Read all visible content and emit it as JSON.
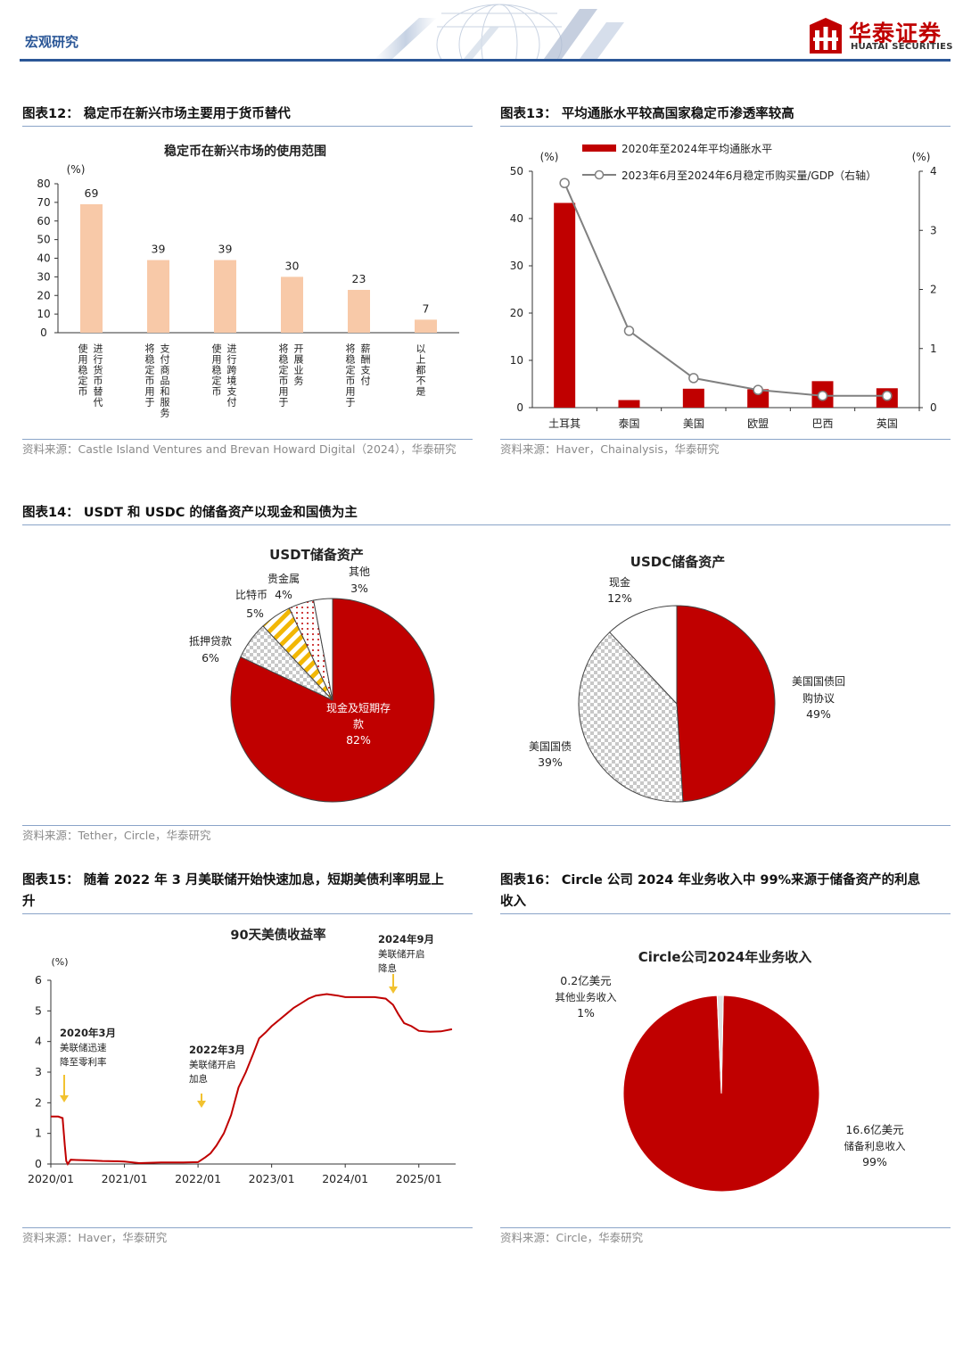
{
  "header": {
    "section": "宏观研究",
    "brand_cn": "华泰证券",
    "brand_en": "HUATAI SECURITIES"
  },
  "figures": {
    "fig12": {
      "title": "图表12：  稳定币在新兴市场主要用于货币替代",
      "source": "资料来源：Castle Island Ventures and Brevan Howard Digital（2024），华泰研究"
    },
    "fig13": {
      "title": "图表13：  平均通胀水平较高国家稳定币渗透率较高",
      "source": "资料来源：Haver，Chainalysis，华泰研究"
    },
    "fig14": {
      "title": "图表14：  USDT 和 USDC 的储备资产以现金和国债为主",
      "source": "资料来源：Tether，Circle，华泰研究"
    },
    "fig15": {
      "title_line1": "图表15：  随着 2022 年 3 月美联储开始快速加息，短期美债利率明显上",
      "title_line2": "升",
      "source": "资料来源：Haver，华泰研究"
    },
    "fig16": {
      "title_line1": "图表16：  Circle 公司 2024 年业务收入中 99%来源于储备资产的利息",
      "title_line2": "收入",
      "source": "资料来源：Circle，华泰研究"
    }
  },
  "chart_data": [
    {
      "id": "fig12",
      "type": "bar",
      "title": "稳定币在新兴市场的使用范围",
      "unit": "(%)",
      "ylim": [
        0,
        80
      ],
      "yticks": [
        0,
        10,
        20,
        30,
        40,
        50,
        60,
        70,
        80
      ],
      "categories": [
        [
          "使用稳定币",
          "进行货币替代"
        ],
        [
          "将稳定币用于",
          "支付商品和服务"
        ],
        [
          "使用稳定币",
          "进行跨境支付"
        ],
        [
          "将稳定币用于",
          "开展业务"
        ],
        [
          "将稳定币用于",
          "薪酬支付"
        ],
        [
          "以上都不是"
        ]
      ],
      "values": [
        69,
        39,
        39,
        30,
        23,
        7
      ],
      "color": "#f8c9a8"
    },
    {
      "id": "fig13",
      "type": "bar+line",
      "categories": [
        "土耳其",
        "泰国",
        "美国",
        "欧盟",
        "巴西",
        "英国"
      ],
      "left_unit": "(%)",
      "right_unit": "(%)",
      "ylim_left": [
        0,
        50
      ],
      "yticks_left": [
        0,
        10,
        20,
        30,
        40,
        50
      ],
      "ylim_right": [
        0,
        4
      ],
      "yticks_right": [
        0,
        1,
        2,
        3,
        4
      ],
      "series": [
        {
          "name": "2020年至2024年平均通胀水平",
          "type": "bar",
          "axis": "left",
          "values": [
            43.3,
            1.6,
            4.0,
            3.9,
            5.6,
            4.1
          ],
          "color": "#c00000"
        },
        {
          "name": "2023年6月至2024年6月稳定币购买量/GDP（右轴）",
          "type": "line",
          "axis": "right",
          "values": [
            3.8,
            1.3,
            0.5,
            0.3,
            0.2,
            0.2
          ],
          "color": "#808080"
        }
      ]
    },
    {
      "id": "fig14a",
      "type": "pie",
      "title": "USDT储备资产",
      "slices": [
        {
          "label": "现金及短期存款",
          "value": 82,
          "pct": "82%",
          "fill": "#c00000"
        },
        {
          "label": "抵押贷款",
          "value": 6,
          "pct": "6%",
          "fill": "pattern-check"
        },
        {
          "label": "比特币",
          "value": 5,
          "pct": "5%",
          "fill": "pattern-gold"
        },
        {
          "label": "贵金属",
          "value": 4,
          "pct": "4%",
          "fill": "pattern-dots"
        },
        {
          "label": "其他",
          "value": 3,
          "pct": "3%",
          "fill": "#ffffff"
        }
      ]
    },
    {
      "id": "fig14b",
      "type": "pie",
      "title": "USDC储备资产",
      "slices": [
        {
          "label": "美国国债回购协议",
          "label_lines": [
            "美国国债回",
            "购协议"
          ],
          "value": 49,
          "pct": "49%",
          "fill": "#c00000"
        },
        {
          "label": "美国国债",
          "value": 39,
          "pct": "39%",
          "fill": "pattern-check"
        },
        {
          "label": "现金",
          "value": 12,
          "pct": "12%",
          "fill": "#ffffff"
        }
      ]
    },
    {
      "id": "fig15",
      "type": "line",
      "title": "90天美债收益率",
      "unit": "(%)",
      "ylim": [
        0,
        6
      ],
      "yticks": [
        0,
        1,
        2,
        3,
        4,
        5,
        6
      ],
      "xticks": [
        "2020/01",
        "2021/01",
        "2022/01",
        "2023/01",
        "2024/01",
        "2025/01"
      ],
      "x_range_years": [
        2020.0,
        2025.5
      ],
      "color": "#c00000",
      "points": [
        [
          2020.0,
          1.55
        ],
        [
          2020.1,
          1.55
        ],
        [
          2020.16,
          1.5
        ],
        [
          2020.19,
          0.6
        ],
        [
          2020.21,
          0.1
        ],
        [
          2020.23,
          0.0
        ],
        [
          2020.27,
          0.14
        ],
        [
          2020.35,
          0.13
        ],
        [
          2020.5,
          0.12
        ],
        [
          2020.7,
          0.1
        ],
        [
          2020.9,
          0.09
        ],
        [
          2021.0,
          0.08
        ],
        [
          2021.2,
          0.03
        ],
        [
          2021.5,
          0.05
        ],
        [
          2021.8,
          0.05
        ],
        [
          2022.0,
          0.06
        ],
        [
          2022.1,
          0.22
        ],
        [
          2022.17,
          0.35
        ],
        [
          2022.25,
          0.6
        ],
        [
          2022.35,
          1.0
        ],
        [
          2022.45,
          1.6
        ],
        [
          2022.55,
          2.5
        ],
        [
          2022.65,
          3.0
        ],
        [
          2022.75,
          3.6
        ],
        [
          2022.83,
          4.1
        ],
        [
          2022.92,
          4.3
        ],
        [
          2023.0,
          4.5
        ],
        [
          2023.1,
          4.7
        ],
        [
          2023.2,
          4.9
        ],
        [
          2023.3,
          5.1
        ],
        [
          2023.4,
          5.25
        ],
        [
          2023.5,
          5.4
        ],
        [
          2023.6,
          5.5
        ],
        [
          2023.75,
          5.55
        ],
        [
          2023.9,
          5.5
        ],
        [
          2024.0,
          5.45
        ],
        [
          2024.2,
          5.45
        ],
        [
          2024.4,
          5.45
        ],
        [
          2024.55,
          5.4
        ],
        [
          2024.65,
          5.2
        ],
        [
          2024.72,
          4.9
        ],
        [
          2024.8,
          4.6
        ],
        [
          2024.9,
          4.5
        ],
        [
          2025.0,
          4.35
        ],
        [
          2025.15,
          4.32
        ],
        [
          2025.3,
          4.33
        ],
        [
          2025.45,
          4.4
        ]
      ],
      "annotations": [
        {
          "lines": [
            "2020年3月",
            "美联储迅速",
            "降至零利率"
          ],
          "x": 2020.2
        },
        {
          "lines": [
            "2022年3月",
            "美联储开启",
            "加息"
          ],
          "x": 2022.2
        },
        {
          "lines": [
            "2024年9月",
            "美联储开启",
            "降息"
          ],
          "x": 2024.7
        }
      ]
    },
    {
      "id": "fig16",
      "type": "pie",
      "title": "Circle公司2024年业务收入",
      "slices": [
        {
          "label_lines": [
            "16.6亿美元",
            "储备利息收入",
            "99%"
          ],
          "value": 99,
          "fill": "#c00000"
        },
        {
          "label_lines": [
            "0.2亿美元",
            "其他业务收入",
            "1%"
          ],
          "value": 1,
          "fill": "#e0e0e0"
        }
      ]
    }
  ]
}
